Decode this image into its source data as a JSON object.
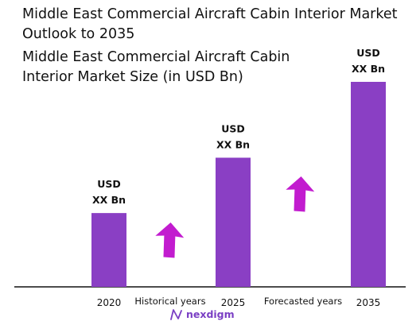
{
  "chart_data": {
    "type": "bar",
    "title": "Middle East Commercial Aircraft Cabin Interior Market Outlook to 2035",
    "subtitle": "Middle East Commercial Aircraft Cabin Interior Market Size (in USD Bn)",
    "categories": [
      "2020",
      "2025",
      "2035"
    ],
    "values": [
      36,
      63,
      100
    ],
    "value_labels": [
      "USD\nXX Bn",
      "USD\nXX Bn",
      "USD\nXX Bn"
    ],
    "ylim": [
      0,
      100
    ],
    "period_labels": [
      "Historical years",
      "Forecasted years"
    ],
    "bar_color": "#8a3fc4",
    "arrow_color": "#c21ccf",
    "grid": false
  },
  "brand": {
    "name": "nexdigm"
  }
}
